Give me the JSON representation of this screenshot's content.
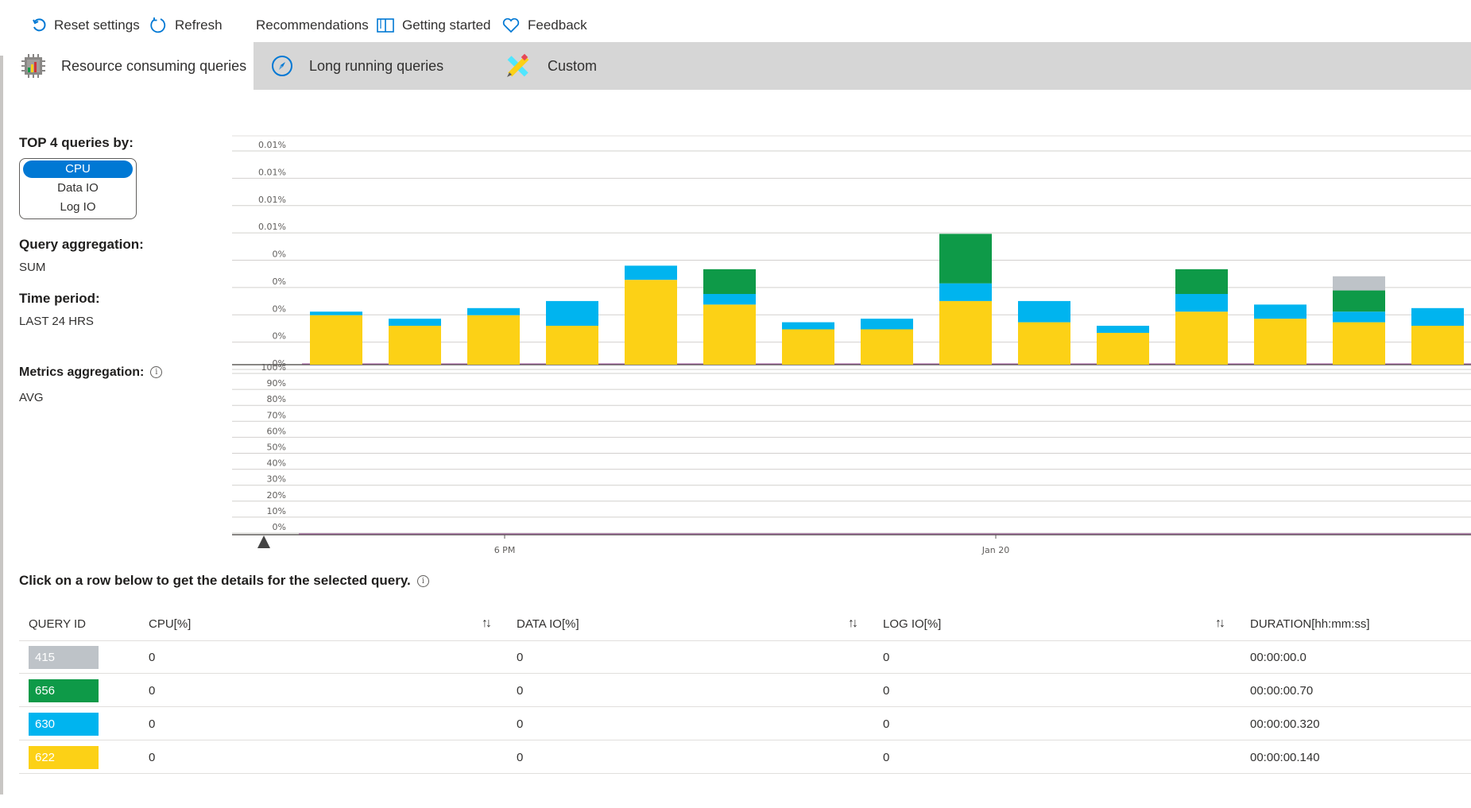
{
  "toolbar": {
    "reset_label": "Reset settings",
    "refresh_label": "Refresh",
    "recommendations_label": "Recommendations",
    "getting_started_label": "Getting started",
    "feedback_label": "Feedback"
  },
  "tabs": [
    {
      "label": "Resource consuming queries",
      "active": true,
      "icon": "cpu-chip-icon"
    },
    {
      "label": "Long running queries",
      "active": false,
      "icon": "compass-icon"
    },
    {
      "label": "Custom",
      "active": false,
      "icon": "pencil-ruler-icon"
    }
  ],
  "left_panel": {
    "top_queries_heading": "TOP 4 queries by:",
    "metric_options": [
      "CPU",
      "Data IO",
      "Log IO"
    ],
    "selected_metric": "CPU",
    "aggregation_heading": "Query aggregation:",
    "aggregation_value": "SUM",
    "time_period_heading": "Time period:",
    "time_period_value": "LAST 24 HRS",
    "metrics_agg_heading": "Metrics aggregation:",
    "metrics_agg_value": "AVG"
  },
  "colors": {
    "q415": "#bec3c8",
    "q656": "#0e9a48",
    "q630": "#00b4ef",
    "q622": "#fcd116",
    "baseline": "#9b4f96",
    "accent": "#0078d4"
  },
  "chart_data": [
    {
      "type": "bar",
      "stacked": true,
      "y_tick_labels": [
        "0.01%",
        "0.01%",
        "0.01%",
        "0.01%",
        "0%",
        "0%",
        "0%",
        "0%",
        "0%"
      ],
      "series": [
        {
          "name": "622",
          "values": [
            14,
            11,
            14,
            11,
            24,
            17,
            10,
            10,
            18,
            12,
            9,
            15,
            13,
            12,
            11
          ]
        },
        {
          "name": "630",
          "values": [
            1,
            2,
            2,
            7,
            4,
            3,
            2,
            3,
            5,
            6,
            2,
            5,
            4,
            3,
            5
          ]
        },
        {
          "name": "656",
          "values": [
            0,
            0,
            0,
            0,
            0,
            7,
            0,
            0,
            14,
            0,
            0,
            7,
            0,
            6,
            0
          ]
        },
        {
          "name": "415",
          "values": [
            0,
            0,
            0,
            0,
            0,
            0,
            0,
            0,
            0,
            0,
            0,
            0,
            0,
            4,
            0
          ]
        }
      ]
    },
    {
      "type": "line",
      "y_tick_labels": [
        "100%",
        "90%",
        "80%",
        "70%",
        "60%",
        "50%",
        "40%",
        "30%",
        "20%",
        "10%",
        "0%"
      ],
      "ylim": [
        0,
        100
      ],
      "x_tick_labels": [
        "6 PM",
        "Jan 20"
      ]
    }
  ],
  "table": {
    "note": "Click on a row below to get the details for the selected query.",
    "headers": [
      "QUERY ID",
      "CPU[%]",
      "DATA IO[%]",
      "LOG IO[%]",
      "DURATION[hh:mm:ss]"
    ],
    "rows": [
      {
        "id": "415",
        "cpu": "0",
        "data_io": "0",
        "log_io": "0",
        "duration": "00:00:00.0",
        "color": "#bec3c8"
      },
      {
        "id": "656",
        "cpu": "0",
        "data_io": "0",
        "log_io": "0",
        "duration": "00:00:00.70",
        "color": "#0e9a48"
      },
      {
        "id": "630",
        "cpu": "0",
        "data_io": "0",
        "log_io": "0",
        "duration": "00:00:00.320",
        "color": "#00b4ef"
      },
      {
        "id": "622",
        "cpu": "0",
        "data_io": "0",
        "log_io": "0",
        "duration": "00:00:00.140",
        "color": "#fcd116"
      }
    ]
  }
}
